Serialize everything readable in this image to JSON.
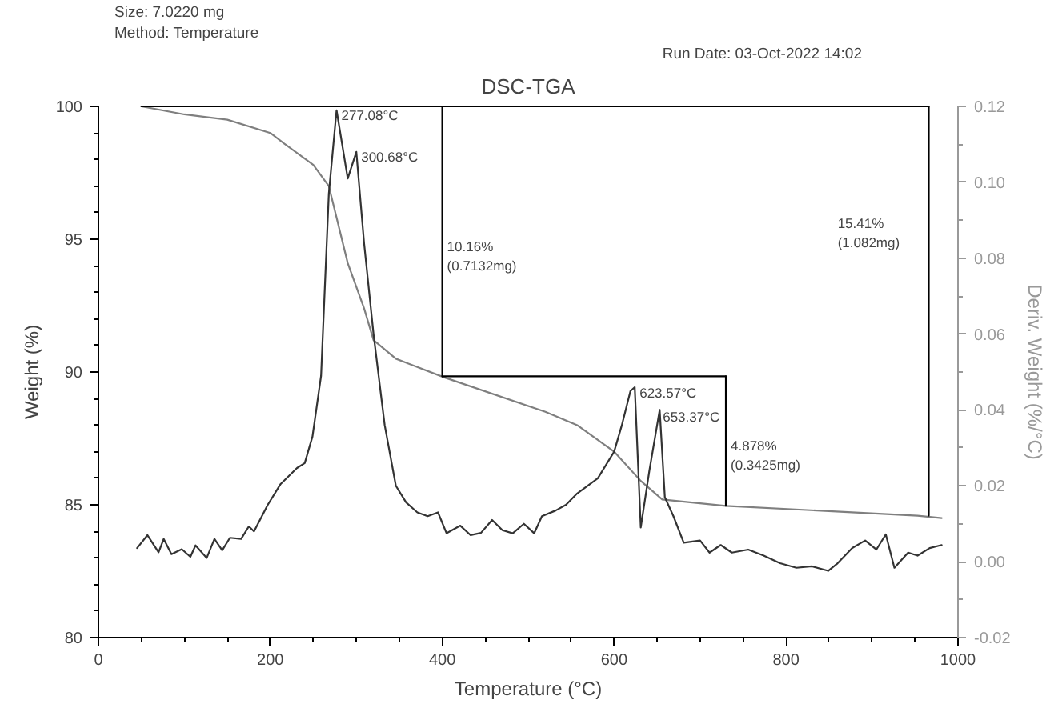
{
  "chart_data": {
    "type": "line",
    "title": "DSC-TGA",
    "xlabel": "Temperature (°C)",
    "ylabel": "Weight (%)",
    "y2label": "Deriv. Weight (%/°C)",
    "xlim": [
      0,
      1000
    ],
    "xticks": [
      0,
      200,
      400,
      600,
      800,
      1000
    ],
    "ylim": [
      80,
      100
    ],
    "yticks": [
      80,
      85,
      90,
      95,
      100
    ],
    "y2lim": [
      -0.02,
      0.12
    ],
    "y2ticks": [
      {
        "value": -0.02,
        "label": "-0.02"
      },
      {
        "value": 0,
        "label": "0.00"
      },
      {
        "value": 0.02,
        "label": "0.02"
      },
      {
        "value": 0.04,
        "label": "0.04"
      },
      {
        "value": 0.06,
        "label": "0.06"
      },
      {
        "value": 0.08,
        "label": "0.08"
      },
      {
        "value": 0.1,
        "label": "0.10"
      },
      {
        "value": 0.12,
        "label": "0.12"
      }
    ],
    "grid": false,
    "line_style": "solid",
    "marker": "none",
    "series": [
      {
        "color": "#7f7f7f",
        "x": [
          50,
          100,
          150,
          200,
          216,
          250,
          268,
          290,
          309,
          320,
          346,
          402,
          520,
          557,
          600,
          631,
          656,
          730,
          953,
          981
        ],
        "values": [
          100.0,
          99.7,
          99.5,
          99.0,
          98.6,
          97.8,
          97.0,
          94.1,
          92.4,
          91.2,
          90.5,
          89.8,
          88.5,
          88.0,
          87.0,
          85.9,
          85.2,
          84.96,
          84.59,
          84.5
        ]
      },
      {
        "color": "#333333",
        "axis": "y2",
        "x": [
          45,
          57,
          70,
          76,
          85,
          97,
          107,
          113,
          126,
          135,
          144,
          153,
          166,
          175,
          181,
          197,
          212,
          231,
          240,
          249,
          259,
          268,
          277,
          290,
          300,
          309,
          320,
          333,
          346,
          358,
          371,
          383,
          395,
          405,
          421,
          433,
          445,
          458,
          470,
          482,
          495,
          507,
          516,
          532,
          544,
          557,
          581,
          600,
          609,
          619,
          624,
          631,
          641,
          653,
          659,
          669,
          681,
          700,
          711,
          724,
          737,
          756,
          774,
          793,
          812,
          830,
          849,
          860,
          877,
          892,
          905,
          916,
          926,
          942,
          953,
          967,
          981
        ],
        "values": [
          0.0036,
          0.007,
          0.0025,
          0.006,
          0.002,
          0.0033,
          0.0013,
          0.0043,
          0.001,
          0.006,
          0.003,
          0.0063,
          0.006,
          0.0093,
          0.008,
          0.015,
          0.0205,
          0.0247,
          0.026,
          0.033,
          0.049,
          0.097,
          0.119,
          0.101,
          0.108,
          0.084,
          0.06,
          0.036,
          0.02,
          0.0156,
          0.013,
          0.012,
          0.013,
          0.0075,
          0.0095,
          0.007,
          0.0076,
          0.011,
          0.0083,
          0.0075,
          0.01,
          0.0075,
          0.012,
          0.0135,
          0.015,
          0.018,
          0.022,
          0.029,
          0.036,
          0.045,
          0.046,
          0.009,
          0.024,
          0.04,
          0.017,
          0.012,
          0.005,
          0.0056,
          0.0024,
          0.0044,
          0.0024,
          0.0032,
          0.0016,
          -0.0004,
          -0.0016,
          -0.0012,
          -0.0024,
          -0.0004,
          0.0036,
          0.0056,
          0.0032,
          0.0072,
          -0.0016,
          0.0024,
          0.0016,
          0.0036,
          0.0044
        ]
      },
      {
        "color": "#000000",
        "x": [
          50,
          966
        ],
        "values": [
          100,
          100
        ]
      },
      {
        "color": "#000000",
        "x": [
          400,
          730
        ],
        "values": [
          89.84,
          89.84
        ]
      },
      {
        "color": "#000000",
        "x": [
          400,
          400
        ],
        "values": [
          100,
          89.84
        ]
      },
      {
        "color": "#000000",
        "x": [
          730,
          730
        ],
        "values": [
          89.84,
          84.96
        ]
      },
      {
        "color": "#000000",
        "x": [
          966,
          966
        ],
        "values": [
          100,
          84.59
        ]
      }
    ],
    "annotations": [
      "Size: 7.0220 mg",
      "Method: Temperature",
      "Run Date: 03-Oct-2022 14:02",
      {
        "text": "277.08°C",
        "x": 277,
        "y": 99.86
      },
      {
        "text": "300.68°C",
        "x": 300,
        "y": 98.29
      },
      {
        "text": "10.16%\n(0.7132mg)",
        "x": 400,
        "y": 94.9
      },
      {
        "text": "623.57°C",
        "x": 624,
        "y": 89.4
      },
      {
        "text": "653.37°C",
        "x": 651,
        "y": 88.5
      },
      {
        "text": "4.878%\n(0.3425mg)",
        "x": 730,
        "y": 87.4
      },
      "15.41%\n(1.082mg)"
    ]
  }
}
